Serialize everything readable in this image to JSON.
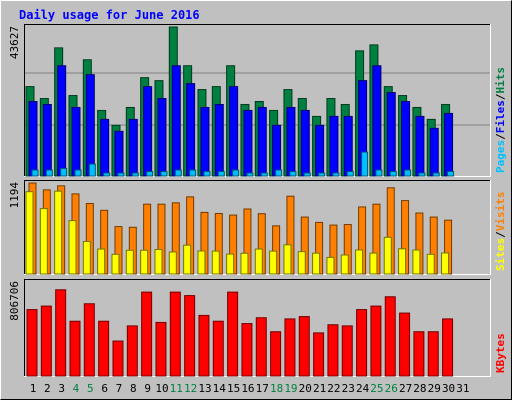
{
  "chart_data": [
    {
      "type": "bar",
      "title": "Daily usage for June 2016",
      "categories": [
        "1",
        "2",
        "3",
        "4",
        "5",
        "6",
        "7",
        "8",
        "9",
        "10",
        "11",
        "12",
        "13",
        "14",
        "15",
        "16",
        "17",
        "18",
        "19",
        "20",
        "21",
        "22",
        "23",
        "24",
        "25",
        "26",
        "27",
        "28",
        "29",
        "30",
        "31"
      ],
      "weekend_days": [
        "4",
        "5",
        "11",
        "12",
        "18",
        "19",
        "25",
        "26"
      ],
      "ytick": "43627",
      "ylim": [
        0,
        50000
      ],
      "ylabel_parts": [
        "Pages",
        "Files",
        "Hits"
      ],
      "series": [
        {
          "name": "Hits",
          "color": "#008040",
          "values": [
            30000,
            26000,
            43000,
            27000,
            39000,
            22000,
            17000,
            23000,
            33000,
            32000,
            50000,
            37000,
            29000,
            30000,
            37000,
            24000,
            25000,
            22000,
            29000,
            26000,
            20000,
            26000,
            24000,
            42000,
            44000,
            30000,
            27000,
            23000,
            19000,
            24000,
            0
          ]
        },
        {
          "name": "Files",
          "color": "#0000ff",
          "values": [
            25000,
            24000,
            37000,
            23000,
            34000,
            19000,
            15000,
            19000,
            30000,
            26000,
            37000,
            31000,
            23000,
            24000,
            30000,
            22000,
            23000,
            17000,
            23000,
            22000,
            17000,
            20000,
            20000,
            32000,
            37000,
            28000,
            25000,
            20000,
            16000,
            21000,
            0
          ]
        },
        {
          "name": "Pages",
          "color": "#00c0ff",
          "values": [
            2000,
            2000,
            2500,
            2000,
            4000,
            1000,
            1000,
            1000,
            1500,
            1500,
            2000,
            2000,
            1500,
            1500,
            2000,
            1000,
            1000,
            2000,
            1500,
            1000,
            1000,
            1000,
            1500,
            8000,
            2000,
            1500,
            2000,
            1000,
            1000,
            1500,
            0
          ]
        }
      ]
    },
    {
      "type": "bar",
      "categories": [
        "1",
        "2",
        "3",
        "4",
        "5",
        "6",
        "7",
        "8",
        "9",
        "10",
        "11",
        "12",
        "13",
        "14",
        "15",
        "16",
        "17",
        "18",
        "19",
        "20",
        "21",
        "22",
        "23",
        "24",
        "25",
        "26",
        "27",
        "28",
        "29",
        "30",
        "31"
      ],
      "ytick": "1194",
      "ylim": [
        0,
        1194
      ],
      "ylabel_parts": [
        "Sites",
        "Visits"
      ],
      "series": [
        {
          "name": "Visits",
          "color": "#ff8000",
          "values": [
            1194,
            1104,
            1157,
            1051,
            925,
            836,
            622,
            613,
            916,
            916,
            934,
            1012,
            808,
            794,
            773,
            853,
            791,
            632,
            1021,
            747,
            677,
            642,
            649,
            880,
            916,
            1131,
            963,
            800,
            747,
            706,
            0
          ]
        },
        {
          "name": "Sites",
          "color": "#ffff00",
          "values": [
            1080,
            858,
            1087,
            700,
            427,
            327,
            258,
            311,
            312,
            321,
            289,
            378,
            302,
            300,
            261,
            272,
            327,
            300,
            383,
            293,
            273,
            218,
            249,
            315,
            274,
            481,
            331,
            314,
            258,
            276,
            0
          ]
        }
      ]
    },
    {
      "type": "bar",
      "categories": [
        "1",
        "2",
        "3",
        "4",
        "5",
        "6",
        "7",
        "8",
        "9",
        "10",
        "11",
        "12",
        "13",
        "14",
        "15",
        "16",
        "17",
        "18",
        "19",
        "20",
        "21",
        "22",
        "23",
        "24",
        "25",
        "26",
        "27",
        "28",
        "29",
        "30",
        "31"
      ],
      "ytick": "806706",
      "ylim": [
        0,
        806706
      ],
      "ylabel_parts": [
        "KBytes"
      ],
      "series": [
        {
          "name": "KBytes",
          "color": "#ff0000",
          "values": [
            570000,
            600000,
            740000,
            470000,
            620000,
            470000,
            300000,
            430000,
            720000,
            460000,
            720000,
            690000,
            520000,
            470000,
            720000,
            450000,
            500000,
            380000,
            490000,
            510000,
            370000,
            440000,
            430000,
            570000,
            600000,
            680000,
            540000,
            380000,
            380000,
            490000,
            0
          ]
        }
      ]
    }
  ],
  "colors": {
    "background": "#c0c0c0",
    "title": "#0000ff",
    "weekend": "#008040",
    "ylabel_slash": "#000000"
  }
}
